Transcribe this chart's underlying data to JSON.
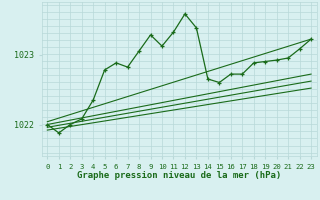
{
  "title": "Graphe pression niveau de la mer (hPa)",
  "bg_color": "#d8f0f0",
  "plot_bg_color": "#d8f0f0",
  "line_color": "#1a6b1a",
  "grid_color": "#b8d8d8",
  "xlabel_color": "#1a6b1a",
  "x_ticks": [
    0,
    1,
    2,
    3,
    4,
    5,
    6,
    7,
    8,
    9,
    10,
    11,
    12,
    13,
    14,
    15,
    16,
    17,
    18,
    19,
    20,
    21,
    22,
    23
  ],
  "yticks": [
    1022,
    1023
  ],
  "ylim": [
    1021.55,
    1023.75
  ],
  "xlim": [
    -0.5,
    23.5
  ],
  "main_line": {
    "x": [
      0,
      1,
      2,
      3,
      4,
      5,
      6,
      7,
      8,
      9,
      10,
      11,
      12,
      13,
      14,
      15,
      16,
      17,
      18,
      19,
      20,
      21,
      22,
      23
    ],
    "y": [
      1022.0,
      1021.88,
      1022.0,
      1022.08,
      1022.35,
      1022.78,
      1022.88,
      1022.82,
      1023.05,
      1023.28,
      1023.12,
      1023.32,
      1023.58,
      1023.38,
      1022.65,
      1022.6,
      1022.72,
      1022.72,
      1022.88,
      1022.9,
      1022.92,
      1022.95,
      1023.08,
      1023.22
    ]
  },
  "forecast_lines": [
    {
      "x": [
        0,
        23
      ],
      "y": [
        1021.92,
        1022.52
      ]
    },
    {
      "x": [
        0,
        23
      ],
      "y": [
        1021.96,
        1022.62
      ]
    },
    {
      "x": [
        0,
        23
      ],
      "y": [
        1022.0,
        1022.72
      ]
    },
    {
      "x": [
        0,
        23
      ],
      "y": [
        1022.04,
        1023.22
      ]
    }
  ]
}
